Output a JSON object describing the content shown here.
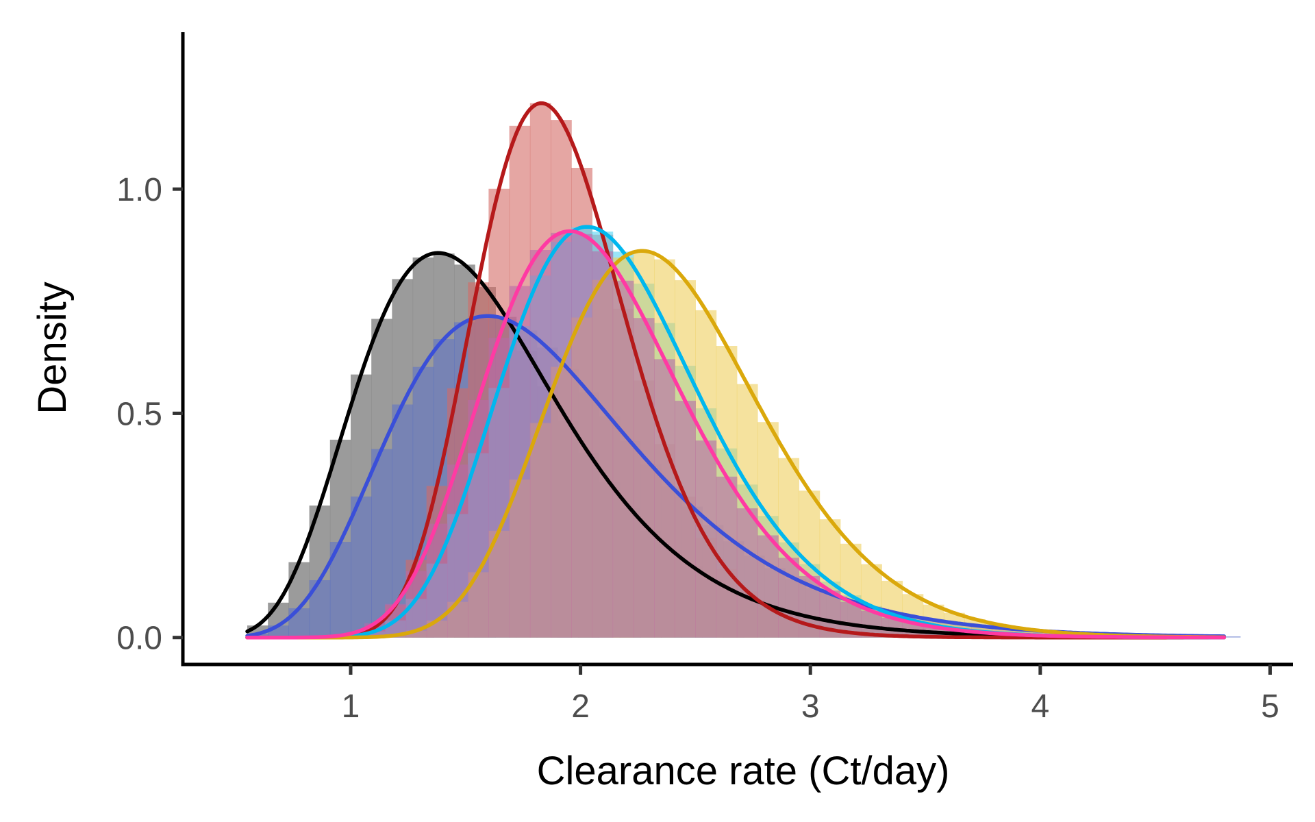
{
  "chart_data": {
    "type": "area",
    "title": "",
    "xlabel": "Clearance rate (Ct/day)",
    "ylabel": "Density",
    "xlim": [
      0.27,
      5.1
    ],
    "ylim": [
      -0.06,
      1.35
    ],
    "x_ticks": [
      1,
      2,
      3,
      4,
      5
    ],
    "x_tick_labels": [
      "1",
      "2",
      "3",
      "4",
      "5"
    ],
    "y_ticks": [
      0.0,
      0.5,
      1.0
    ],
    "y_tick_labels": [
      "0.0",
      "0.5",
      "1.0"
    ],
    "grid": false,
    "legend": "none",
    "histogram_bin_width": 0.09,
    "series": [
      {
        "color": "#000000",
        "hist_color": "#8a8a8a",
        "hist_opacity": 0.85,
        "hist_range": [
          0.55,
          4.8
        ],
        "curve": {
          "type": "lognormal",
          "median": 1.53,
          "sigma": 0.32,
          "x_range": [
            0.55,
            4.8
          ]
        }
      },
      {
        "color": "#3a4fd8",
        "hist_color": "#5a70c8",
        "hist_opacity": 0.55,
        "hist_range": [
          0.55,
          4.8
        ],
        "curve": {
          "type": "lognormal",
          "median": 1.78,
          "sigma": 0.33,
          "x_range": [
            0.55,
            4.8
          ]
        }
      },
      {
        "color": "#b5191a",
        "hist_color": "#d46a66",
        "hist_opacity": 0.6,
        "hist_range": [
          0.7,
          4.8
        ],
        "curve": {
          "type": "lognormal",
          "median": 1.89,
          "sigma": 0.18,
          "x_range": [
            0.55,
            4.8
          ]
        }
      },
      {
        "color": "#00b7ee",
        "hist_color": "#55d4f3",
        "hist_opacity": 0.6,
        "hist_range": [
          0.7,
          4.8
        ],
        "curve": {
          "type": "lognormal",
          "median": 2.12,
          "sigma": 0.21,
          "x_range": [
            0.55,
            4.8
          ]
        }
      },
      {
        "color": "#daa80b",
        "hist_color": "#eecf5e",
        "hist_opacity": 0.6,
        "hist_range": [
          0.7,
          4.8
        ],
        "curve": {
          "type": "lognormal",
          "median": 2.36,
          "sigma": 0.2,
          "x_range": [
            0.55,
            4.8
          ]
        }
      },
      {
        "color": "#ff3aa3",
        "hist_color": "#b86aa8",
        "hist_opacity": 0.6,
        "hist_range": [
          0.7,
          4.8
        ],
        "curve": {
          "type": "lognormal",
          "median": 2.05,
          "sigma": 0.22,
          "x_range": [
            0.55,
            4.8
          ]
        }
      }
    ]
  }
}
